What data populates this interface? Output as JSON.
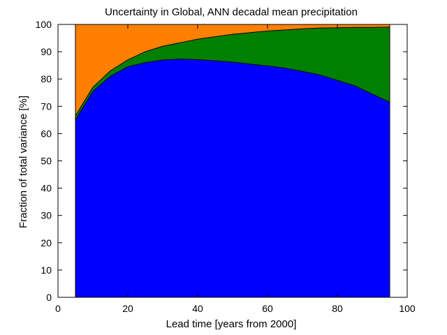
{
  "chart_data": {
    "type": "area",
    "stacked": true,
    "title": "Uncertainty in Global, ANN decadal mean precipitation",
    "xlabel": "Lead time  [years from 2000]",
    "ylabel": "Fraction of total variance  [%]",
    "xlim": [
      0,
      100
    ],
    "ylim": [
      0,
      100
    ],
    "xticks": [
      0,
      20,
      40,
      60,
      80,
      100
    ],
    "yticks": [
      0,
      10,
      20,
      30,
      40,
      50,
      60,
      70,
      80,
      90,
      100
    ],
    "grid": false,
    "legend": "none",
    "x": [
      5,
      10,
      15,
      20,
      25,
      30,
      35,
      40,
      45,
      50,
      55,
      60,
      65,
      70,
      75,
      80,
      85,
      90,
      95
    ],
    "series": [
      {
        "color": "#0000ff",
        "values": [
          65,
          75.5,
          81,
          84.5,
          86,
          87,
          87.3,
          87.1,
          86.7,
          86.2,
          85.5,
          84.8,
          84,
          82.8,
          81.5,
          79.5,
          77.5,
          74.5,
          71.5
        ]
      },
      {
        "color": "#008000",
        "values": [
          1.5,
          1.5,
          2,
          2.5,
          4,
          5,
          6,
          7.5,
          8.8,
          10.2,
          11.5,
          12.8,
          14,
          15.6,
          17.2,
          19.3,
          21.4,
          24.4,
          27.5
        ]
      },
      {
        "color": "#ff8000",
        "values": [
          33.5,
          23,
          17,
          13,
          10,
          8,
          6.7,
          5.4,
          4.5,
          3.6,
          3,
          2.4,
          2,
          1.6,
          1.3,
          1.2,
          1.1,
          1.1,
          1
        ]
      }
    ]
  }
}
